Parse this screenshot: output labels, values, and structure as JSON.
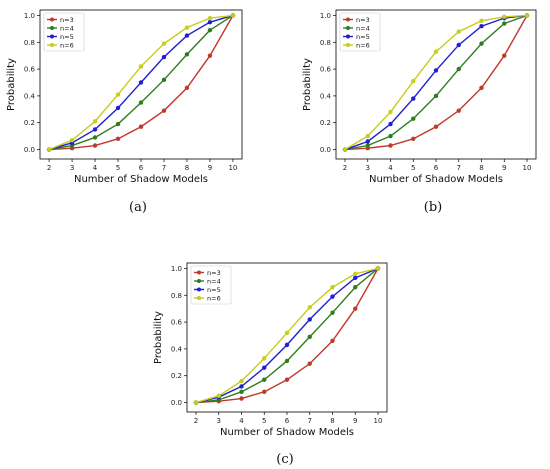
{
  "figure": {
    "panels": [
      {
        "caption": "(a)"
      },
      {
        "caption": "(b)"
      },
      {
        "caption": "(c)"
      }
    ]
  },
  "colors": {
    "n3": "#c0392b",
    "n4": "#2e7d1f",
    "n5": "#1f1fd6",
    "n6": "#c8cc1a"
  },
  "chart_data": [
    {
      "type": "line",
      "caption": "(a)",
      "xlabel": "Number of Shadow Models",
      "ylabel": "Probability",
      "x": [
        2,
        3,
        4,
        5,
        6,
        7,
        8,
        9,
        10
      ],
      "xlim": [
        2,
        10
      ],
      "ylim": [
        0.0,
        1.0
      ],
      "yticks": [
        "0.0",
        "0.2",
        "0.4",
        "0.6",
        "0.8",
        "1.0"
      ],
      "xticks": [
        "2",
        "3",
        "4",
        "5",
        "6",
        "7",
        "8",
        "9",
        "10"
      ],
      "grid": false,
      "legend": "top-left",
      "series": [
        {
          "name": "n=3",
          "color": "#c0392b",
          "values": [
            0.0,
            0.01,
            0.03,
            0.08,
            0.17,
            0.29,
            0.46,
            0.7,
            1.0
          ]
        },
        {
          "name": "n=4",
          "color": "#2e7d1f",
          "values": [
            0.0,
            0.03,
            0.09,
            0.19,
            0.35,
            0.52,
            0.71,
            0.89,
            1.0
          ]
        },
        {
          "name": "n=5",
          "color": "#1f1fd6",
          "values": [
            0.0,
            0.05,
            0.15,
            0.31,
            0.5,
            0.69,
            0.85,
            0.95,
            1.0
          ]
        },
        {
          "name": "n=6",
          "color": "#c8cc1a",
          "values": [
            0.0,
            0.07,
            0.21,
            0.41,
            0.62,
            0.79,
            0.91,
            0.98,
            1.0
          ]
        }
      ]
    },
    {
      "type": "line",
      "caption": "(b)",
      "xlabel": "Number of Shadow Models",
      "ylabel": "Probability",
      "x": [
        2,
        3,
        4,
        5,
        6,
        7,
        8,
        9,
        10
      ],
      "xlim": [
        2,
        10
      ],
      "ylim": [
        0.0,
        1.0
      ],
      "yticks": [
        "0.0",
        "0.2",
        "0.4",
        "0.6",
        "0.8",
        "1.0"
      ],
      "xticks": [
        "2",
        "3",
        "4",
        "5",
        "6",
        "7",
        "8",
        "9",
        "10"
      ],
      "grid": false,
      "legend": "top-left",
      "series": [
        {
          "name": "n=3",
          "color": "#c0392b",
          "values": [
            0.0,
            0.01,
            0.03,
            0.08,
            0.17,
            0.29,
            0.46,
            0.7,
            1.0
          ]
        },
        {
          "name": "n=4",
          "color": "#2e7d1f",
          "values": [
            0.0,
            0.03,
            0.1,
            0.23,
            0.4,
            0.6,
            0.79,
            0.94,
            1.0
          ]
        },
        {
          "name": "n=5",
          "color": "#1f1fd6",
          "values": [
            0.0,
            0.06,
            0.19,
            0.38,
            0.59,
            0.78,
            0.92,
            0.98,
            1.0
          ]
        },
        {
          "name": "n=6",
          "color": "#c8cc1a",
          "values": [
            0.0,
            0.1,
            0.28,
            0.51,
            0.73,
            0.88,
            0.96,
            0.99,
            1.0
          ]
        }
      ]
    },
    {
      "type": "line",
      "caption": "(c)",
      "xlabel": "Number of Shadow Models",
      "ylabel": "Probability",
      "x": [
        2,
        3,
        4,
        5,
        6,
        7,
        8,
        9,
        10
      ],
      "xlim": [
        2,
        10
      ],
      "ylim": [
        0.0,
        1.0
      ],
      "yticks": [
        "0.0",
        "0.2",
        "0.4",
        "0.6",
        "0.8",
        "1.0"
      ],
      "xticks": [
        "2",
        "3",
        "4",
        "5",
        "6",
        "7",
        "8",
        "9",
        "10"
      ],
      "grid": false,
      "legend": "top-left",
      "series": [
        {
          "name": "n=3",
          "color": "#c0392b",
          "values": [
            0.0,
            0.01,
            0.03,
            0.08,
            0.17,
            0.29,
            0.46,
            0.7,
            1.0
          ]
        },
        {
          "name": "n=4",
          "color": "#2e7d1f",
          "values": [
            0.0,
            0.02,
            0.08,
            0.17,
            0.31,
            0.49,
            0.67,
            0.86,
            1.0
          ]
        },
        {
          "name": "n=5",
          "color": "#1f1fd6",
          "values": [
            0.0,
            0.04,
            0.12,
            0.26,
            0.43,
            0.62,
            0.79,
            0.93,
            1.0
          ]
        },
        {
          "name": "n=6",
          "color": "#c8cc1a",
          "values": [
            0.0,
            0.05,
            0.16,
            0.33,
            0.52,
            0.71,
            0.86,
            0.96,
            1.0
          ]
        }
      ]
    }
  ]
}
